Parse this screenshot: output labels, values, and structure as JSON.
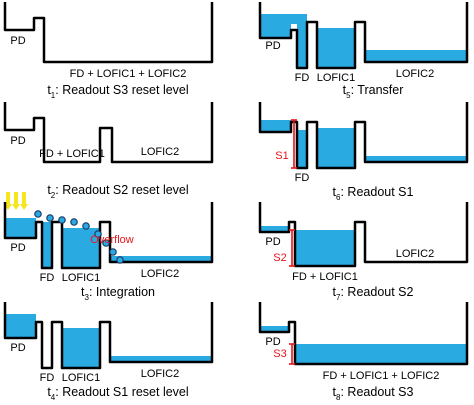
{
  "panels": [
    {
      "labels": [
        "PD",
        "FD + LOFIC1 + LOFIC2"
      ],
      "caption": {
        "t": "t",
        "sub": "1",
        "text": ": Readout S3 reset level"
      }
    },
    {
      "labels": [
        "PD",
        "FD + LOFIC1",
        "LOFIC2"
      ],
      "caption": {
        "t": "t",
        "sub": "2",
        "text": ": Readout S2 reset level"
      }
    },
    {
      "labels": [
        "PD",
        "FD",
        "LOFIC1",
        "LOFIC2"
      ],
      "annotation": "Overflow",
      "caption": {
        "t": "t",
        "sub": "3",
        "text": ": Integration"
      }
    },
    {
      "labels": [
        "PD",
        "FD",
        "LOFIC1",
        "LOFIC2"
      ],
      "caption": {
        "t": "t",
        "sub": "4",
        "text": ": Readout S1 reset level"
      }
    },
    {
      "labels": [
        "PD",
        "FD",
        "LOFIC1",
        "LOFIC2"
      ],
      "caption": {
        "t": "t",
        "sub": "5",
        "text": ": Transfer"
      }
    },
    {
      "labels": [
        "FD"
      ],
      "marker": "S1",
      "caption": {
        "t": "t",
        "sub": "6",
        "text": ": Readout S1"
      }
    },
    {
      "labels": [
        "PD",
        "FD + LOFIC1",
        "LOFIC2"
      ],
      "marker": "S2",
      "caption": {
        "t": "t",
        "sub": "7",
        "text": ": Readout S2"
      }
    },
    {
      "labels": [
        "PD",
        "FD + LOFIC1 + LOFIC2"
      ],
      "marker": "S3",
      "caption": {
        "t": "t",
        "sub": "8",
        "text": ": Readout S3"
      }
    }
  ]
}
